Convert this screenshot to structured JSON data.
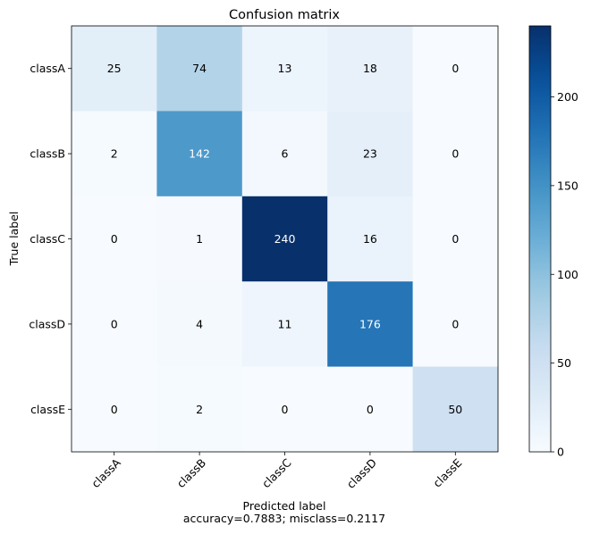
{
  "chart_data": {
    "type": "heatmap",
    "title": "Confusion matrix",
    "xlabel": "Predicted label",
    "xlabel_sub": "accuracy=0.7883; misclass=0.2117",
    "ylabel": "True label",
    "x_categories": [
      "classA",
      "classB",
      "classC",
      "classD",
      "classE"
    ],
    "y_categories": [
      "classA",
      "classB",
      "classC",
      "classD",
      "classE"
    ],
    "values": [
      [
        25,
        74,
        13,
        18,
        0
      ],
      [
        2,
        142,
        6,
        23,
        0
      ],
      [
        0,
        1,
        240,
        16,
        0
      ],
      [
        0,
        4,
        11,
        176,
        0
      ],
      [
        0,
        2,
        0,
        0,
        50
      ]
    ],
    "colormap": "Blues",
    "vmin": 0,
    "vmax": 240,
    "colorbar_ticks": [
      0,
      50,
      100,
      150,
      200
    ],
    "colors": {
      "low": "#f7fbff",
      "high": "#08306b",
      "text_dark": "#000000",
      "text_light": "#ffffff"
    }
  }
}
